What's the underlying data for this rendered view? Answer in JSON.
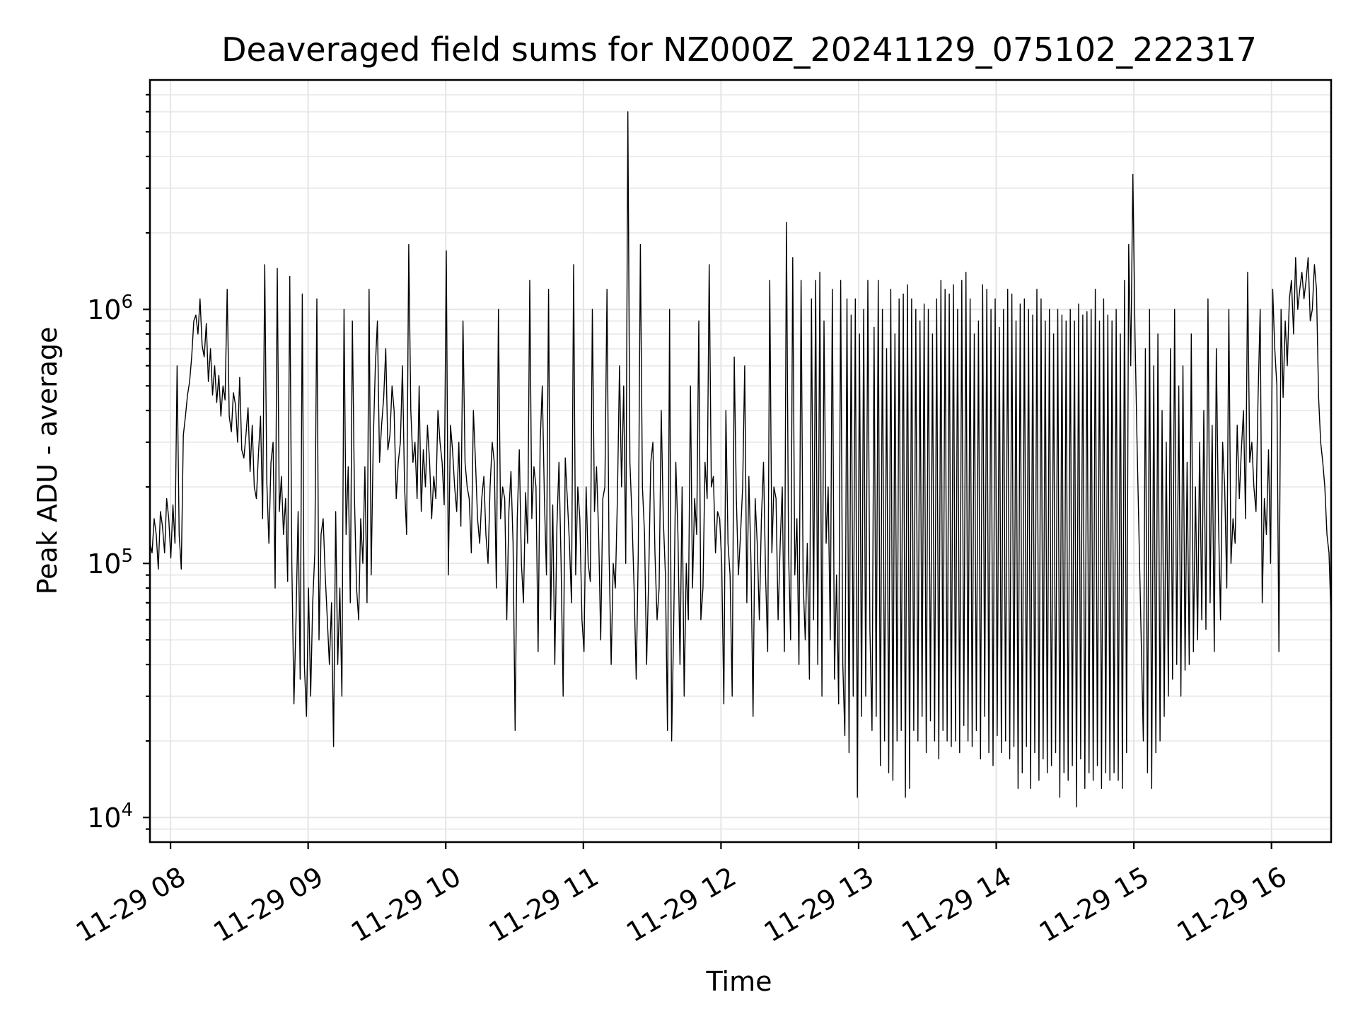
{
  "chart_data": {
    "type": "line",
    "title": "Deaveraged field sums for NZ000Z_20241129_075102_222317",
    "xlabel": "Time",
    "ylabel": "Peak ADU - average",
    "yscale": "log",
    "xlim": [
      "2024-11-29T07:51:02",
      "2024-11-29T16:26:00"
    ],
    "ylim": [
      8000,
      8000000
    ],
    "grid": true,
    "line_color": "#000000",
    "x_ticks": [
      "11-29 08",
      "11-29 09",
      "11-29 10",
      "11-29 11",
      "11-29 12",
      "11-29 13",
      "11-29 14",
      "11-29 15",
      "11-29 16"
    ],
    "y_ticks": [
      {
        "value": 10000,
        "base": "10",
        "exp": "4"
      },
      {
        "value": 100000,
        "base": "10",
        "exp": "5"
      },
      {
        "value": 1000000,
        "base": "10",
        "exp": "6"
      }
    ],
    "series": [
      {
        "values_note": "",
        "x_start": "2024-11-29T07:51:02",
        "x_end": "2024-11-29T16:26:00",
        "values": [
          120000,
          110000,
          150000,
          130000,
          95000,
          160000,
          140000,
          110000,
          180000,
          150000,
          105000,
          170000,
          120000,
          600000,
          130000,
          95000,
          320000,
          380000,
          460000,
          520000,
          650000,
          900000,
          950000,
          800000,
          1100000,
          720000,
          650000,
          880000,
          520000,
          700000,
          460000,
          600000,
          430000,
          550000,
          380000,
          500000,
          440000,
          1200000,
          380000,
          330000,
          470000,
          420000,
          300000,
          540000,
          280000,
          260000,
          320000,
          410000,
          230000,
          350000,
          200000,
          180000,
          270000,
          380000,
          150000,
          1500000,
          210000,
          120000,
          250000,
          300000,
          80000,
          1450000,
          160000,
          220000,
          130000,
          180000,
          85000,
          1350000,
          100000,
          28000,
          60000,
          160000,
          35000,
          1150000,
          40000,
          25000,
          80000,
          30000,
          70000,
          110000,
          1100000,
          50000,
          130000,
          150000,
          90000,
          60000,
          40000,
          70000,
          19000,
          160000,
          40000,
          80000,
          30000,
          1000000,
          130000,
          240000,
          70000,
          900000,
          180000,
          80000,
          60000,
          150000,
          100000,
          240000,
          70000,
          1200000,
          90000,
          300000,
          600000,
          900000,
          250000,
          350000,
          450000,
          700000,
          280000,
          320000,
          500000,
          400000,
          180000,
          250000,
          300000,
          600000,
          200000,
          130000,
          1800000,
          400000,
          250000,
          300000,
          180000,
          500000,
          160000,
          280000,
          200000,
          350000,
          250000,
          150000,
          220000,
          180000,
          400000,
          300000,
          250000,
          170000,
          1700000,
          90000,
          350000,
          280000,
          200000,
          160000,
          300000,
          140000,
          900000,
          250000,
          200000,
          180000,
          110000,
          400000,
          250000,
          150000,
          120000,
          180000,
          220000,
          130000,
          100000,
          200000,
          300000,
          250000,
          80000,
          1000000,
          150000,
          200000,
          180000,
          60000,
          160000,
          230000,
          120000,
          22000,
          150000,
          280000,
          100000,
          70000,
          190000,
          120000,
          1300000,
          150000,
          240000,
          200000,
          45000,
          300000,
          500000,
          180000,
          90000,
          1200000,
          60000,
          170000,
          40000,
          140000,
          250000,
          100000,
          30000,
          260000,
          180000,
          120000,
          70000,
          1500000,
          90000,
          200000,
          150000,
          60000,
          45000,
          200000,
          100000,
          85000,
          1000000,
          160000,
          240000,
          130000,
          50000,
          180000,
          200000,
          1200000,
          110000,
          40000,
          100000,
          80000,
          180000,
          600000,
          200000,
          500000,
          100000,
          6000000,
          250000,
          150000,
          80000,
          35000,
          110000,
          1800000,
          200000,
          130000,
          40000,
          90000,
          250000,
          300000,
          110000,
          60000,
          80000,
          400000,
          150000,
          90000,
          22000,
          1000000,
          20000,
          60000,
          250000,
          130000,
          40000,
          200000,
          30000,
          100000,
          60000,
          500000,
          80000,
          180000,
          130000,
          900000,
          60000,
          80000,
          250000,
          180000,
          1500000,
          200000,
          220000,
          110000,
          160000,
          150000,
          100000,
          28000,
          400000,
          120000,
          90000,
          30000,
          650000,
          180000,
          90000,
          130000,
          200000,
          600000,
          70000,
          220000,
          100000,
          25000,
          180000,
          120000,
          60000,
          150000,
          250000,
          90000,
          45000,
          1300000,
          110000,
          200000,
          180000,
          60000,
          120000,
          200000,
          45000,
          2200000,
          110000,
          50000,
          1600000,
          90000,
          150000,
          40000,
          1300000,
          85000,
          50000,
          120000,
          35000,
          1100000,
          60000,
          1300000,
          40000,
          1400000,
          30000,
          900000,
          120000,
          200000,
          50000,
          1200000,
          35000,
          90000,
          28000,
          1300000,
          40000,
          21000,
          1100000,
          18000,
          950000,
          30000,
          1100000,
          12000,
          800000,
          25000,
          1000000,
          30000,
          1300000,
          55000,
          22000,
          850000,
          25000,
          1300000,
          16000,
          1000000,
          20000,
          700000,
          15000,
          1200000,
          14000,
          800000,
          20000,
          1100000,
          22000,
          1150000,
          12000,
          1250000,
          13000,
          1100000,
          22000,
          1000000,
          20000,
          900000,
          25000,
          1050000,
          18000,
          1000000,
          24000,
          800000,
          20000,
          1100000,
          17000,
          1300000,
          22000,
          1200000,
          20000,
          1150000,
          19000,
          1250000,
          20000,
          1000000,
          18000,
          1300000,
          23000,
          1400000,
          20000,
          1100000,
          19000,
          800000,
          22000,
          900000,
          17000,
          1250000,
          25000,
          1200000,
          18000,
          1000000,
          16000,
          1100000,
          21000,
          850000,
          18000,
          1000000,
          20000,
          1200000,
          17000,
          1150000,
          19000,
          900000,
          13000,
          1050000,
          15000,
          1100000,
          19000,
          1000000,
          13000,
          950000,
          18000,
          1200000,
          14000,
          1100000,
          17000,
          900000,
          15000,
          1000000,
          16000,
          800000,
          18000,
          1000000,
          12000,
          950000,
          15000,
          900000,
          14000,
          1000000,
          16000,
          900000,
          11000,
          1050000,
          17000,
          950000,
          13000,
          980000,
          15000,
          1000000,
          14000,
          1200000,
          16000,
          900000,
          13000,
          1100000,
          15000,
          950000,
          14000,
          900000,
          15000,
          1000000,
          14000,
          800000,
          13000,
          1300000,
          18000,
          1800000,
          600000,
          3400000,
          800000,
          300000,
          120000,
          50000,
          20000,
          700000,
          15000,
          1000000,
          13000,
          600000,
          18000,
          800000,
          20000,
          400000,
          25000,
          300000,
          30000,
          700000,
          35000,
          1000000,
          40000,
          500000,
          30000,
          600000,
          38000,
          250000,
          40000,
          800000,
          45000,
          200000,
          50000,
          300000,
          60000,
          400000,
          55000,
          1100000,
          70000,
          350000,
          45000,
          700000,
          150000,
          60000,
          300000,
          200000,
          80000,
          1000000,
          100000,
          150000,
          120000,
          350000,
          180000,
          280000,
          400000,
          150000,
          1400000,
          250000,
          300000,
          200000,
          160000,
          450000,
          1000000,
          70000,
          180000,
          130000,
          280000,
          100000,
          1200000,
          700000,
          500000,
          45000,
          1000000,
          450000,
          900000,
          600000,
          1100000,
          1300000,
          800000,
          1600000,
          1000000,
          1200000,
          1400000,
          1100000,
          1300000,
          1600000,
          900000,
          1000000,
          1500000,
          1200000,
          450000,
          300000,
          250000,
          200000,
          130000,
          110000,
          60000
        ]
      }
    ]
  }
}
